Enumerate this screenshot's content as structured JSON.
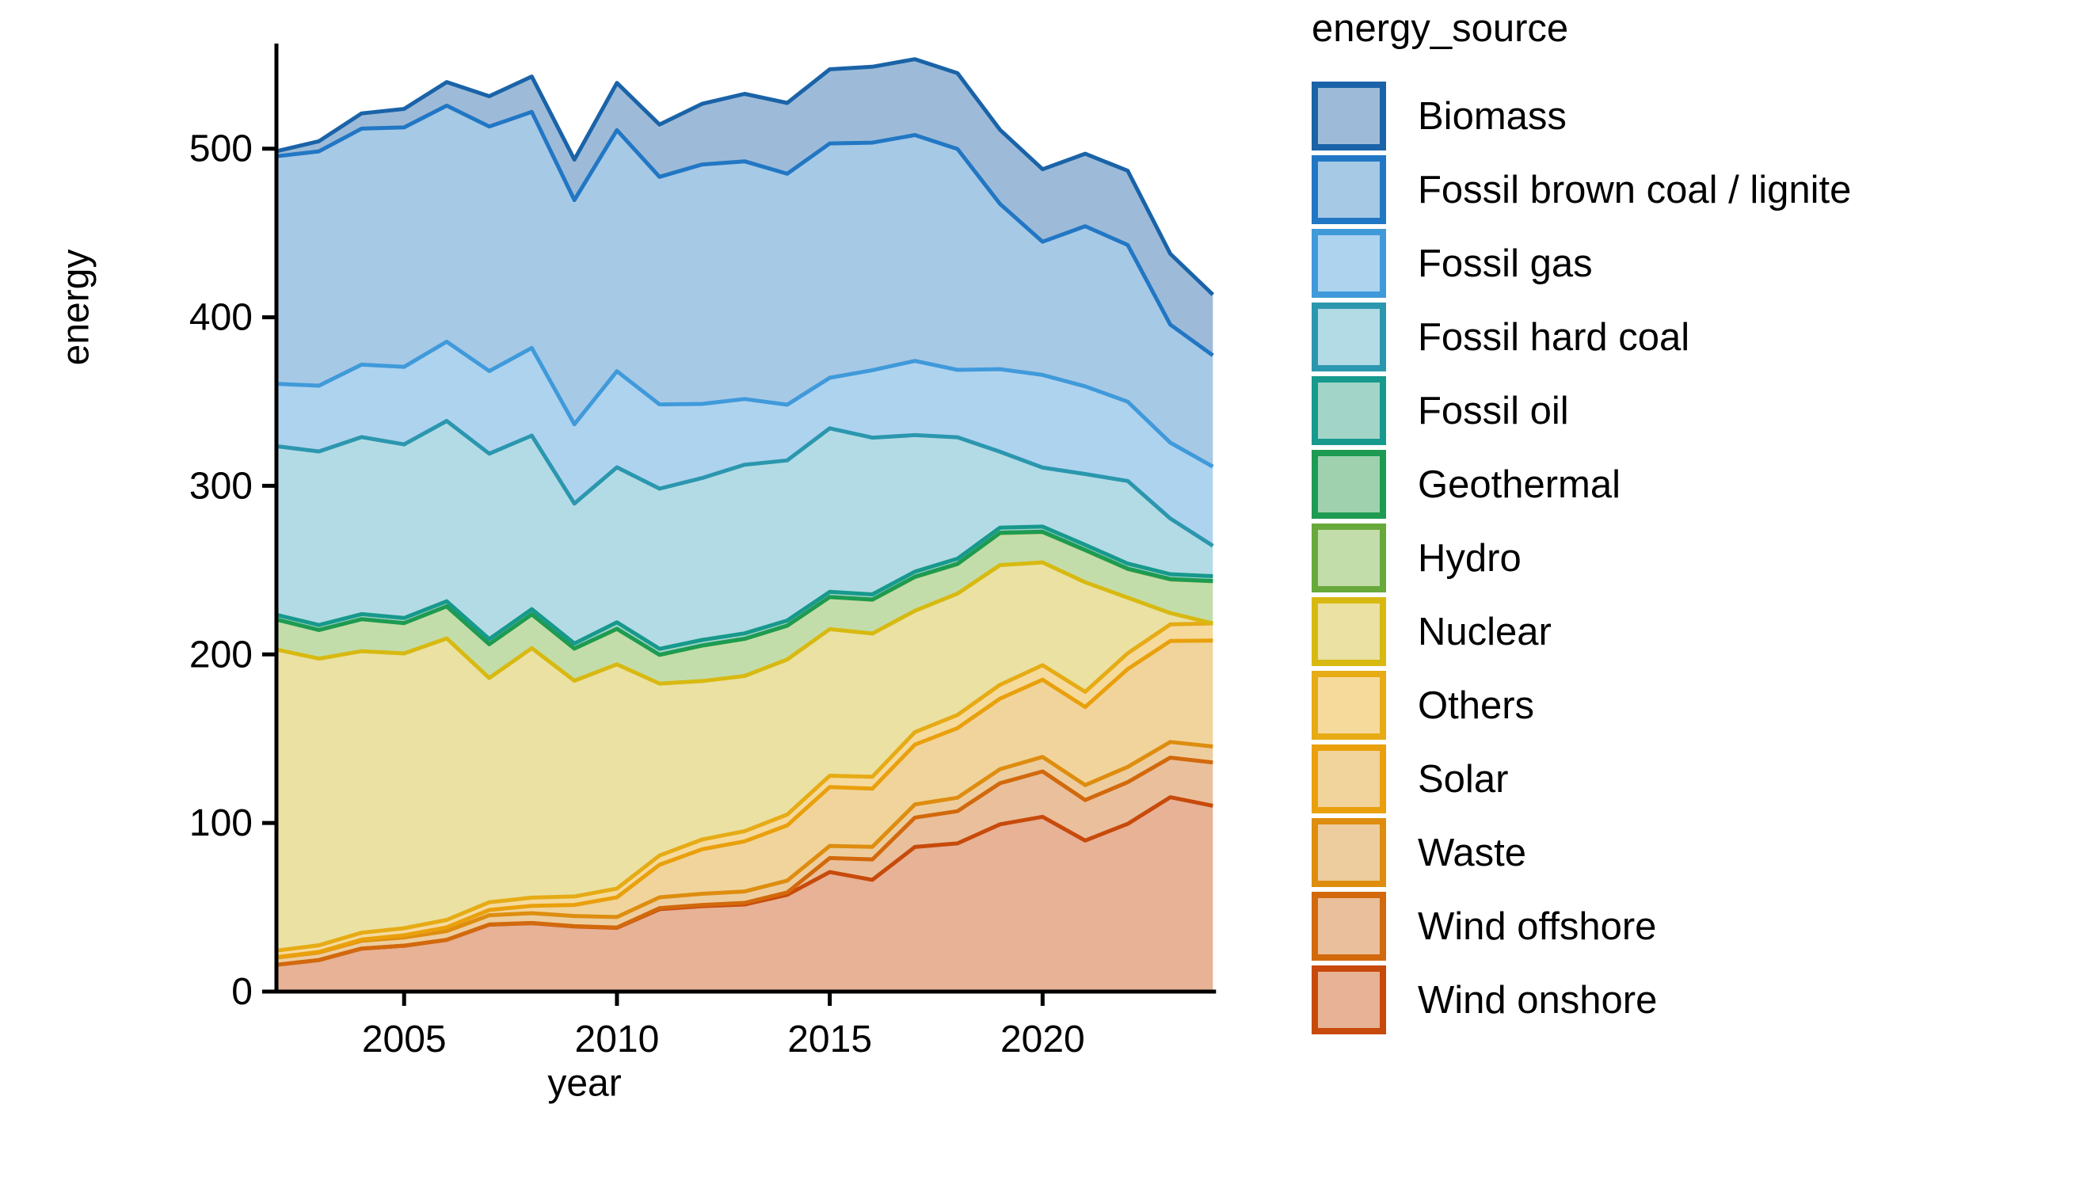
{
  "figure": {
    "background": "#ffffff",
    "text_color": "#000000",
    "axis_color": "#000000"
  },
  "axes": {
    "x_title": "year",
    "y_title": "energy",
    "x_ticks": [
      {
        "label": "2005",
        "value": 2005
      },
      {
        "label": "2010",
        "value": 2010
      },
      {
        "label": "2015",
        "value": 2015
      },
      {
        "label": "2020",
        "value": 2020
      }
    ],
    "y_ticks": [
      {
        "label": "0",
        "value": 0
      },
      {
        "label": "100",
        "value": 100
      },
      {
        "label": "200",
        "value": 200
      },
      {
        "label": "300",
        "value": 300
      },
      {
        "label": "400",
        "value": 400
      },
      {
        "label": "500",
        "value": 500
      }
    ]
  },
  "legend": {
    "title": "energy_source"
  },
  "chart_data": {
    "type": "area",
    "stacked": true,
    "title": "",
    "xlabel": "year",
    "ylabel": "energy",
    "legend_title": "energy_source",
    "legend_position": "right",
    "grid": false,
    "xlim": [
      2002,
      2024
    ],
    "ylim": [
      0,
      560
    ],
    "x": [
      2002,
      2003,
      2004,
      2005,
      2006,
      2007,
      2008,
      2009,
      2010,
      2011,
      2012,
      2013,
      2014,
      2015,
      2016,
      2017,
      2018,
      2019,
      2020,
      2021,
      2022,
      2023,
      2024
    ],
    "stacking_note": "series listed top-to-bottom as in legend; stacked bottom-up starting with Wind onshore",
    "series": [
      {
        "name": "Biomass",
        "fill": "#9dbbd8",
        "stroke": "#1a63a8",
        "values": [
          3,
          6,
          9,
          11,
          14,
          18,
          21,
          24,
          28,
          31,
          36,
          40,
          42,
          44,
          45,
          45,
          45,
          44,
          43,
          43,
          44,
          42,
          36
        ]
      },
      {
        "name": "Fossil brown coal / lignite",
        "fill": "#a6c9e6",
        "stroke": "#2277c4",
        "values": [
          135,
          139,
          140,
          142,
          140,
          145,
          140,
          133,
          143,
          135,
          142,
          141,
          137,
          139,
          135,
          134,
          131,
          98,
          79,
          95,
          93,
          70,
          66
        ]
      },
      {
        "name": "Fossil gas",
        "fill": "#aed3ef",
        "stroke": "#409ada",
        "values": [
          37,
          39,
          43,
          46,
          47,
          49,
          52,
          47,
          57,
          50,
          44,
          39,
          33,
          30,
          40,
          44,
          40,
          49,
          55,
          52,
          47,
          45,
          47
        ]
      },
      {
        "name": "Fossil hard coal",
        "fill": "#b3dbe5",
        "stroke": "#2b97ae",
        "values": [
          100,
          103,
          105,
          103,
          107,
          110,
          103,
          83,
          92,
          95,
          96,
          100,
          95,
          97,
          93,
          81,
          72,
          45,
          35,
          42,
          49,
          33,
          18
        ]
      },
      {
        "name": "Fossil oil",
        "fill": "#a2d5c8",
        "stroke": "#17998d",
        "values": [
          2.8,
          2.9,
          3,
          3,
          3,
          3,
          3,
          3,
          3.8,
          3.5,
          3.3,
          3.2,
          3,
          3,
          3,
          3,
          3,
          3,
          3,
          3,
          3,
          2.9,
          2.8
        ]
      },
      {
        "name": "Geothermal",
        "fill": "#9fd1af",
        "stroke": "#1d9b52",
        "values": [
          0,
          0,
          0,
          0,
          0,
          0.1,
          0.1,
          0.1,
          0.1,
          0.1,
          0.1,
          0.1,
          0.1,
          0.1,
          0.2,
          0.2,
          0.2,
          0.2,
          0.2,
          0.2,
          0.2,
          0.2,
          0.2
        ]
      },
      {
        "name": "Hydro",
        "fill": "#c3ddaa",
        "stroke": "#68a93c",
        "values": [
          17.8,
          17,
          19,
          18,
          19,
          20,
          20,
          19,
          21,
          17,
          21,
          22,
          20,
          19,
          20,
          20,
          17.5,
          19,
          18,
          19,
          17,
          20,
          25
        ]
      },
      {
        "name": "Nuclear",
        "fill": "#ebe1a2",
        "stroke": "#d8b911",
        "values": [
          178.6,
          170,
          167,
          163,
          167,
          133,
          148,
          128,
          133,
          102,
          94,
          92,
          92,
          87,
          85,
          72,
          72,
          71,
          61,
          65,
          33,
          6.7,
          0
        ]
      },
      {
        "name": "Others",
        "fill": "#f5da9c",
        "stroke": "#e6ab15",
        "values": [
          3.9,
          4,
          4.1,
          4.2,
          4.4,
          4.6,
          4.8,
          5,
          5.2,
          5.5,
          5.8,
          6.1,
          6.4,
          6.7,
          7,
          7.4,
          7.8,
          8.2,
          8.6,
          9,
          9.4,
          9.8,
          10.2
        ]
      },
      {
        "name": "Solar",
        "fill": "#f1d49b",
        "stroke": "#e9a00c",
        "values": [
          0.2,
          0.3,
          0.6,
          1.3,
          2.2,
          3.1,
          4.4,
          6.6,
          11.7,
          19.3,
          26.4,
          29.7,
          32.8,
          34.9,
          34.5,
          35.5,
          41.3,
          41.9,
          45.8,
          46.3,
          58,
          59.9,
          62.8
        ]
      },
      {
        "name": "Waste",
        "fill": "#edcd9e",
        "stroke": "#de8d0f",
        "values": [
          4.3,
          4.5,
          4.7,
          4.9,
          5.2,
          5.5,
          5.8,
          6,
          6.2,
          6.4,
          6.6,
          6.8,
          7,
          7.2,
          7.5,
          7.8,
          8,
          8.3,
          8.6,
          8.9,
          9.1,
          9.3,
          9.5
        ]
      },
      {
        "name": "Wind offshore",
        "fill": "#eabf9b",
        "stroke": "#d2690c",
        "values": [
          0,
          0,
          0,
          0,
          0,
          0.1,
          0.1,
          0.2,
          0.2,
          0.6,
          0.7,
          0.9,
          1.4,
          8.3,
          12.1,
          17.4,
          19.1,
          24.4,
          26.9,
          24,
          24.7,
          23.5,
          25.7
        ]
      },
      {
        "name": "Wind onshore",
        "fill": "#e7b295",
        "stroke": "#c74a0b",
        "values": [
          15.9,
          18.7,
          25.5,
          27.2,
          30.7,
          39.7,
          40.6,
          38.6,
          37.8,
          48.9,
          50.7,
          51.7,
          57.4,
          70.9,
          66.3,
          85.8,
          87.9,
          99.2,
          103.7,
          89.6,
          99.5,
          115.3,
          110.2
        ]
      }
    ]
  }
}
